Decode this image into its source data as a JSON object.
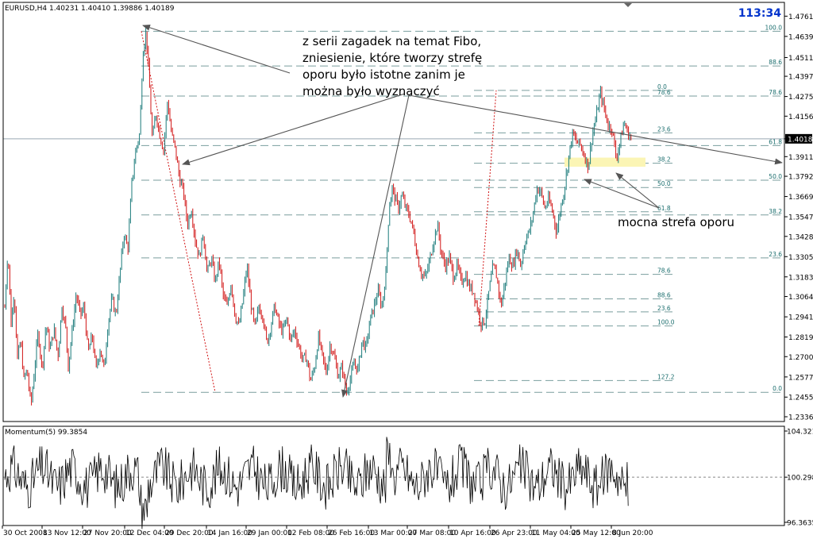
{
  "colors": {
    "bull": "#1a7a7a",
    "bear": "#d11414",
    "fib": "#7a9e9e",
    "trend": "#555555",
    "price_line": "#9aa9b3",
    "zone": "#fbf5b5",
    "clock": "#0033cc",
    "momentum": "#000000"
  },
  "chart_data": [
    {
      "type": "candlestick",
      "header": "EURUSD,H4  1.40231 1.40410 1.39886 1.40189",
      "timer": "113:34",
      "ylim": [
        1.2336,
        1.4768
      ],
      "y_ticks": [
        "1.47615",
        "1.46390",
        "1.45110",
        "1.43975",
        "1.42750",
        "1.41560",
        "1.40189",
        "1.39110",
        "1.37920",
        "1.36695",
        "1.35470",
        "1.34280",
        "1.33055",
        "1.31830",
        "1.30640",
        "1.29410",
        "1.28190",
        "1.27000",
        "1.25770",
        "1.24550",
        "1.23360"
      ],
      "y_tick_values": [
        1.47615,
        1.4639,
        1.4511,
        1.43975,
        1.4275,
        1.4156,
        1.40189,
        1.3911,
        1.3792,
        1.36695,
        1.3547,
        1.3428,
        1.33055,
        1.3183,
        1.3064,
        1.2941,
        1.2819,
        1.27,
        1.2577,
        1.2455,
        1.2336
      ],
      "current_price": 1.40189,
      "x_labels": [
        "30 Oct 2008",
        "13 Nov 12:00",
        "27 Nov 20:00",
        "12 Dec 04:00",
        "29 Dec 20:00",
        "14 Jan 16:00",
        "29 Jan 00:00",
        "12 Feb 08:00",
        "26 Feb 16:00",
        "13 Mar 00:00",
        "27 Mar 08:00",
        "10 Apr 16:00",
        "26 Apr 23:00",
        "11 May 04:00",
        "25 May 12:00",
        "8 Jun 20:00"
      ],
      "price_path": [
        [
          0,
          1.3
        ],
        [
          4,
          1.335
        ],
        [
          8,
          1.29
        ],
        [
          12,
          1.31
        ],
        [
          16,
          1.268
        ],
        [
          20,
          1.28
        ],
        [
          24,
          1.256
        ],
        [
          28,
          1.262
        ],
        [
          33,
          1.24
        ],
        [
          38,
          1.265
        ],
        [
          42,
          1.285
        ],
        [
          47,
          1.262
        ],
        [
          52,
          1.29
        ],
        [
          57,
          1.274
        ],
        [
          62,
          1.287
        ],
        [
          67,
          1.27
        ],
        [
          72,
          1.301
        ],
        [
          77,
          1.286
        ],
        [
          80,
          1.264
        ],
        [
          85,
          1.286
        ],
        [
          90,
          1.308
        ],
        [
          95,
          1.295
        ],
        [
          100,
          1.3
        ],
        [
          105,
          1.272
        ],
        [
          110,
          1.283
        ],
        [
          115,
          1.262
        ],
        [
          120,
          1.275
        ],
        [
          125,
          1.262
        ],
        [
          130,
          1.29
        ],
        [
          135,
          1.305
        ],
        [
          140,
          1.295
        ],
        [
          145,
          1.32
        ],
        [
          150,
          1.345
        ],
        [
          155,
          1.335
        ],
        [
          160,
          1.375
        ],
        [
          165,
          1.395
        ],
        [
          170,
          1.405
        ],
        [
          174,
          1.455
        ],
        [
          178,
          1.467
        ],
        [
          182,
          1.436
        ],
        [
          186,
          1.4
        ],
        [
          190,
          1.418
        ],
        [
          195,
          1.405
        ],
        [
          200,
          1.395
        ],
        [
          205,
          1.425
        ],
        [
          210,
          1.405
        ],
        [
          215,
          1.395
        ],
        [
          220,
          1.378
        ],
        [
          225,
          1.37
        ],
        [
          230,
          1.35
        ],
        [
          235,
          1.36
        ],
        [
          240,
          1.34
        ],
        [
          245,
          1.33
        ],
        [
          250,
          1.345
        ],
        [
          255,
          1.32
        ],
        [
          260,
          1.33
        ],
        [
          265,
          1.315
        ],
        [
          270,
          1.328
        ],
        [
          275,
          1.307
        ],
        [
          280,
          1.3
        ],
        [
          285,
          1.315
        ],
        [
          290,
          1.295
        ],
        [
          295,
          1.288
        ],
        [
          300,
          1.305
        ],
        [
          305,
          1.325
        ],
        [
          310,
          1.302
        ],
        [
          315,
          1.287
        ],
        [
          320,
          1.3
        ],
        [
          325,
          1.295
        ],
        [
          330,
          1.278
        ],
        [
          335,
          1.288
        ],
        [
          340,
          1.301
        ],
        [
          345,
          1.29
        ],
        [
          350,
          1.285
        ],
        [
          355,
          1.293
        ],
        [
          360,
          1.28
        ],
        [
          365,
          1.286
        ],
        [
          370,
          1.277
        ],
        [
          375,
          1.268
        ],
        [
          380,
          1.27
        ],
        [
          385,
          1.255
        ],
        [
          390,
          1.263
        ],
        [
          395,
          1.282
        ],
        [
          400,
          1.27
        ],
        [
          405,
          1.26
        ],
        [
          410,
          1.278
        ],
        [
          415,
          1.27
        ],
        [
          420,
          1.258
        ],
        [
          425,
          1.264
        ],
        [
          430,
          1.248
        ],
        [
          435,
          1.256
        ],
        [
          440,
          1.266
        ],
        [
          445,
          1.262
        ],
        [
          450,
          1.28
        ],
        [
          455,
          1.275
        ],
        [
          460,
          1.292
        ],
        [
          465,
          1.3
        ],
        [
          470,
          1.31
        ],
        [
          475,
          1.3
        ],
        [
          480,
          1.32
        ],
        [
          484,
          1.36
        ],
        [
          488,
          1.372
        ],
        [
          492,
          1.365
        ],
        [
          496,
          1.36
        ],
        [
          500,
          1.368
        ],
        [
          505,
          1.36
        ],
        [
          510,
          1.355
        ],
        [
          515,
          1.345
        ],
        [
          520,
          1.33
        ],
        [
          525,
          1.32
        ],
        [
          530,
          1.318
        ],
        [
          535,
          1.328
        ],
        [
          540,
          1.34
        ],
        [
          545,
          1.35
        ],
        [
          550,
          1.332
        ],
        [
          555,
          1.325
        ],
        [
          560,
          1.33
        ],
        [
          565,
          1.318
        ],
        [
          570,
          1.325
        ],
        [
          575,
          1.315
        ],
        [
          580,
          1.32
        ],
        [
          585,
          1.312
        ],
        [
          590,
          1.31
        ],
        [
          595,
          1.3
        ],
        [
          600,
          1.29
        ],
        [
          605,
          1.292
        ],
        [
          610,
          1.31
        ],
        [
          615,
          1.325
        ],
        [
          620,
          1.318
        ],
        [
          625,
          1.3
        ],
        [
          630,
          1.315
        ],
        [
          635,
          1.33
        ],
        [
          640,
          1.325
        ],
        [
          645,
          1.335
        ],
        [
          650,
          1.325
        ],
        [
          655,
          1.34
        ],
        [
          660,
          1.345
        ],
        [
          665,
          1.355
        ],
        [
          670,
          1.372
        ],
        [
          675,
          1.37
        ],
        [
          680,
          1.36
        ],
        [
          685,
          1.365
        ],
        [
          690,
          1.358
        ],
        [
          695,
          1.345
        ],
        [
          700,
          1.36
        ],
        [
          705,
          1.372
        ],
        [
          710,
          1.39
        ],
        [
          715,
          1.405
        ],
        [
          720,
          1.4
        ],
        [
          725,
          1.398
        ],
        [
          730,
          1.392
        ],
        [
          735,
          1.385
        ],
        [
          740,
          1.405
        ],
        [
          745,
          1.415
        ],
        [
          750,
          1.43
        ],
        [
          755,
          1.42
        ],
        [
          760,
          1.41
        ],
        [
          765,
          1.408
        ],
        [
          770,
          1.39
        ],
        [
          775,
          1.4
        ],
        [
          780,
          1.412
        ],
        [
          785,
          1.405
        ],
        [
          790,
          1.402
        ]
      ],
      "fibonacci": [
        {
          "levels": [
            "100.0",
            "88.6",
            "78.6",
            "61.8",
            "50.0",
            "38.2",
            "23.6",
            "0.0"
          ],
          "values": [
            1.467,
            1.446,
            1.4278,
            1.3978,
            1.3768,
            1.3558,
            1.3298,
            1.2484
          ]
        },
        {
          "levels": [
            "0.0",
            "78.6",
            "23.6",
            "38.2",
            "50.0",
            "61.8",
            "78.6",
            "88.6",
            "23.6",
            "100.0",
            "127.2"
          ],
          "values": [
            1.4312,
            1.4278,
            1.4055,
            1.3871,
            1.3724,
            1.3577,
            1.3198,
            1.305,
            1.2971,
            1.2886,
            1.2555
          ]
        }
      ],
      "zone": {
        "from": 1.385,
        "to": 1.3905,
        "label": "mocna strefa oporu"
      },
      "annotation": [
        "z serii zagadek na temat Fibo,",
        "zniesienie, które tworzy strefę",
        "oporu było istotne zanim je",
        "można było wyznaczyć"
      ]
    },
    {
      "type": "line",
      "header": "Momentum(5) 99.3854",
      "ylim": [
        96.3635,
        104.3219
      ],
      "y_ticks": [
        "104.3219",
        "100.2986",
        "96.3635"
      ],
      "y_tick_values": [
        104.3219,
        100.2986,
        96.3635
      ],
      "reference": 100.2986
    }
  ]
}
